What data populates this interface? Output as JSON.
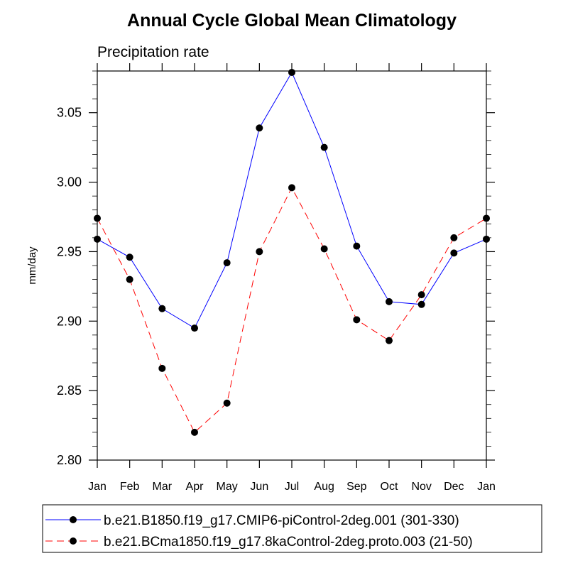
{
  "chart_data": {
    "type": "line",
    "title": "Annual Cycle Global Mean Climatology",
    "subtitle": "Precipitation rate",
    "xlabel": "",
    "ylabel": "mm/day",
    "categories": [
      "Jan",
      "Feb",
      "Mar",
      "Apr",
      "May",
      "Jun",
      "Jul",
      "Aug",
      "Sep",
      "Oct",
      "Nov",
      "Dec",
      "Jan"
    ],
    "ylim": [
      2.8,
      3.08
    ],
    "yticks": [
      "2.80",
      "2.85",
      "2.90",
      "2.95",
      "3.00",
      "3.05"
    ],
    "ytick_values": [
      2.8,
      2.85,
      2.9,
      2.95,
      3.0,
      3.05
    ],
    "grid": false,
    "legend_placement": "bottom",
    "series": [
      {
        "name": "b.e21.B1850.f19_g17.CMIP6-piControl-2deg.001 (301-330)",
        "color": "#0000ff",
        "dash": "solid",
        "values": [
          2.959,
          2.946,
          2.909,
          2.895,
          2.942,
          3.039,
          3.079,
          3.025,
          2.954,
          2.914,
          2.912,
          2.949,
          2.959
        ]
      },
      {
        "name": "b.e21.BCma1850.f19_g17.8kaControl-2deg.proto.003 (21-50)",
        "color": "#ff0000",
        "dash": "dashed",
        "values": [
          2.974,
          2.93,
          2.866,
          2.82,
          2.841,
          2.95,
          2.996,
          2.952,
          2.901,
          2.886,
          2.919,
          2.96,
          2.974
        ]
      }
    ]
  }
}
